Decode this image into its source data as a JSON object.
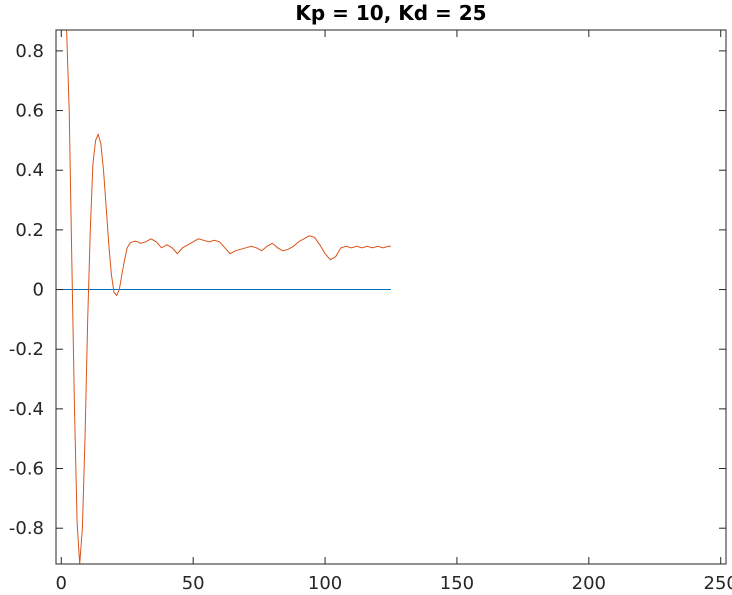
{
  "chart_data": {
    "type": "line",
    "title": "Kp = 10, Kd = 25",
    "xlabel": "",
    "ylabel": "",
    "xlim": [
      -2,
      252
    ],
    "ylim": [
      -0.92,
      0.87
    ],
    "x_ticks": [
      0,
      50,
      100,
      150,
      200,
      250
    ],
    "x_tick_labels": [
      "0",
      "50",
      "100",
      "150",
      "200",
      "250"
    ],
    "y_ticks": [
      0.8,
      0.6,
      0.4,
      0.2,
      0,
      -0.2,
      -0.4,
      -0.6,
      -0.8
    ],
    "y_tick_labels": [
      "0.8",
      "0.6",
      "0.4",
      "0.2",
      "0",
      "-0.2",
      "-0.4",
      "-0.6",
      "-0.8"
    ],
    "grid": false,
    "series": [
      {
        "color": "#0072BD",
        "x": [
          0,
          125
        ],
        "y": [
          0,
          0
        ]
      },
      {
        "color": "#D95319",
        "x": [
          2,
          3,
          4,
          5,
          6,
          7,
          8,
          9,
          10,
          11,
          12,
          13,
          14,
          15,
          16,
          17,
          18,
          19,
          20,
          21,
          22,
          23,
          24,
          25,
          26,
          27,
          28,
          29,
          30,
          32,
          34,
          36,
          38,
          40,
          42,
          44,
          46,
          48,
          50,
          52,
          54,
          56,
          58,
          60,
          62,
          64,
          66,
          68,
          70,
          72,
          74,
          76,
          78,
          80,
          82,
          84,
          86,
          88,
          90,
          92,
          94,
          96,
          98,
          100,
          102,
          104,
          106,
          108,
          110,
          112,
          114,
          116,
          118,
          120,
          122,
          124,
          125
        ],
        "y": [
          0.87,
          0.6,
          0.1,
          -0.4,
          -0.78,
          -0.92,
          -0.8,
          -0.5,
          -0.1,
          0.2,
          0.42,
          0.5,
          0.52,
          0.49,
          0.4,
          0.28,
          0.15,
          0.05,
          -0.01,
          -0.02,
          0.0,
          0.05,
          0.1,
          0.14,
          0.155,
          0.16,
          0.162,
          0.16,
          0.155,
          0.16,
          0.17,
          0.16,
          0.14,
          0.15,
          0.14,
          0.12,
          0.14,
          0.15,
          0.16,
          0.17,
          0.165,
          0.16,
          0.165,
          0.16,
          0.14,
          0.12,
          0.13,
          0.135,
          0.14,
          0.145,
          0.14,
          0.13,
          0.145,
          0.155,
          0.14,
          0.13,
          0.135,
          0.145,
          0.16,
          0.17,
          0.18,
          0.175,
          0.15,
          0.12,
          0.1,
          0.11,
          0.14,
          0.145,
          0.14,
          0.145,
          0.14,
          0.145,
          0.14,
          0.145,
          0.14,
          0.145,
          0.145
        ]
      }
    ]
  }
}
